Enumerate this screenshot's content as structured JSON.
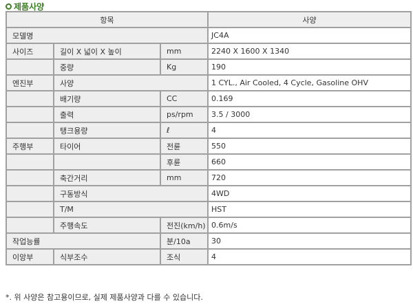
{
  "section_title": "제품사양",
  "header": {
    "item": "항목",
    "spec": "사양"
  },
  "rows": {
    "model": {
      "label": "모델명",
      "value": "JC4A"
    },
    "size": {
      "group": "사이즈",
      "label": "길이 X 넓이 X 높이",
      "unit": "mm",
      "value": "2240 X 1600 X 1340"
    },
    "weight": {
      "label": "중량",
      "unit": "Kg",
      "value": "190"
    },
    "engine_spec": {
      "group": "엔진부",
      "label": "사양",
      "value": "1 CYL., Air Cooled, 4 Cycle, Gasoline OHV"
    },
    "displacement": {
      "label": "배기량",
      "unit": "CC",
      "value": "0.169"
    },
    "output": {
      "label": "출력",
      "unit": "ps/rpm",
      "value": "3.5 / 3000"
    },
    "tank": {
      "label": "탱크용량",
      "unit": "ℓ",
      "value": "4"
    },
    "tire_front": {
      "group": "주행부",
      "label": "타이어",
      "unit": "전륜",
      "value": "550"
    },
    "tire_rear": {
      "unit": "후륜",
      "value": "660"
    },
    "wheelbase": {
      "label": "축간거리",
      "unit": "mm",
      "value": "720"
    },
    "drive": {
      "label": "구동방식",
      "value": "4WD"
    },
    "tm": {
      "label": "T/M",
      "value": "HST"
    },
    "speed": {
      "label": "주행속도",
      "unit": "전진(km/h)",
      "value": "0.6m/s"
    },
    "efficiency": {
      "label": "작업능률",
      "unit": "분/10a",
      "value": "30"
    },
    "planting": {
      "group": "이앙부",
      "label": "식부조수",
      "unit": "조식",
      "value": "4"
    }
  },
  "note": "*. 위 사양은 참고용이므로, 실제 제품사양과 다를 수 있습니다."
}
